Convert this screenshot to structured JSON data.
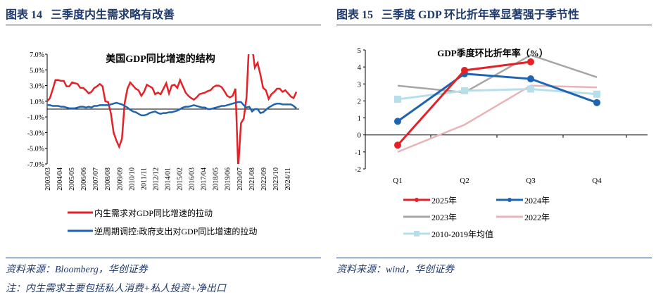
{
  "left": {
    "title": "图表 14   三季度内生需求略有改善",
    "source": "资料来源：Bloomberg，华创证券",
    "note": "注：内生需求主要包括私人消费+私人投资+净出口"
  },
  "right": {
    "title": "图表 15   三季度 GDP 环比折年率显著强于季节性",
    "source": "资料来源：wind，华创证券"
  },
  "chart_data": [
    {
      "type": "line",
      "title": "美国GDP同比增速的结构",
      "ylim": [
        -7,
        7
      ],
      "yticks": [
        "7.0%",
        "5.0%",
        "3.0%",
        "1.0%",
        "-1.0%",
        "-3.0%",
        "-5.0%",
        "-7.0%"
      ],
      "ytick_values": [
        7,
        5,
        3,
        1,
        -1,
        -3,
        -5,
        -7
      ],
      "xticks": [
        "2003/03",
        "2004/04",
        "2005/05",
        "2006/06",
        "2007/07",
        "2008/08",
        "2009/09",
        "2010/10",
        "2011/11",
        "2012/12",
        "2014/01",
        "2015/02",
        "2016/03",
        "2017/04",
        "2018/05",
        "2019/06",
        "2020/07",
        "2021/08",
        "2022/09",
        "2023/10",
        "2024/11"
      ],
      "x_range": [
        "2003/03",
        "2025/12"
      ],
      "x": [
        "2003/03",
        "2003/06",
        "2003/09",
        "2003/12",
        "2004/03",
        "2004/06",
        "2004/09",
        "2004/12",
        "2005/03",
        "2005/06",
        "2005/09",
        "2005/12",
        "2006/03",
        "2006/06",
        "2006/09",
        "2006/12",
        "2007/03",
        "2007/06",
        "2007/09",
        "2007/12",
        "2008/03",
        "2008/06",
        "2008/09",
        "2008/12",
        "2009/03",
        "2009/06",
        "2009/09",
        "2009/12",
        "2010/03",
        "2010/06",
        "2010/09",
        "2010/12",
        "2011/03",
        "2011/06",
        "2011/09",
        "2011/12",
        "2012/03",
        "2012/06",
        "2012/09",
        "2012/12",
        "2013/03",
        "2013/06",
        "2013/09",
        "2013/12",
        "2014/03",
        "2014/06",
        "2014/09",
        "2014/12",
        "2015/03",
        "2015/06",
        "2015/09",
        "2015/12",
        "2016/03",
        "2016/06",
        "2016/09",
        "2016/12",
        "2017/03",
        "2017/06",
        "2017/09",
        "2017/12",
        "2018/03",
        "2018/06",
        "2018/09",
        "2018/12",
        "2019/03",
        "2019/06",
        "2019/09",
        "2019/12",
        "2020/03",
        "2020/06",
        "2020/09",
        "2020/12",
        "2021/03",
        "2021/06",
        "2021/09",
        "2021/12",
        "2022/03",
        "2022/06",
        "2022/09",
        "2022/12",
        "2023/03",
        "2023/06",
        "2023/09",
        "2023/12",
        "2024/03",
        "2024/06",
        "2024/09",
        "2024/12",
        "2025/03",
        "2025/06",
        "2025/09"
      ],
      "series": [
        {
          "name": "内生需求对GDP同比增速的拉动",
          "color": "#e32228",
          "values": [
            1.0,
            1.4,
            2.5,
            3.7,
            3.7,
            3.6,
            3.6,
            2.9,
            2.9,
            3.4,
            3.3,
            3.2,
            2.7,
            2.7,
            2.4,
            2.0,
            2.2,
            2.7,
            2.9,
            3.2,
            2.9,
            1.0,
            0.9,
            -0.5,
            -3.0,
            -4.0,
            -4.8,
            -3.8,
            0.8,
            2.6,
            3.4,
            3.0,
            2.6,
            2.4,
            1.7,
            2.2,
            3.1,
            2.9,
            2.7,
            1.9,
            2.1,
            1.9,
            2.6,
            3.3,
            2.0,
            3.0,
            3.1,
            2.7,
            3.7,
            2.9,
            2.1,
            1.7,
            1.4,
            1.2,
            1.5,
            1.9,
            2.0,
            2.1,
            2.3,
            2.4,
            2.8,
            3.0,
            3.0,
            2.8,
            2.3,
            1.7,
            1.5,
            1.7,
            2.6,
            -7.5,
            -1.8,
            -1.2,
            1.5,
            9.0,
            8.0,
            5.3,
            5.9,
            4.4,
            2.7,
            2.4,
            1.3,
            1.9,
            2.2,
            2.6,
            2.6,
            2.2,
            2.4,
            2.0,
            1.6,
            1.4,
            2.2
          ]
        },
        {
          "name": "逆周期调控:政府支出对GDP同比增速的拉动",
          "color": "#1f64b0",
          "values": [
            0.5,
            0.5,
            0.4,
            0.4,
            0.4,
            0.3,
            0.3,
            0.2,
            0.1,
            0.1,
            0.1,
            0.2,
            0.3,
            0.3,
            0.2,
            0.3,
            0.2,
            0.4,
            0.4,
            0.5,
            0.5,
            0.5,
            0.5,
            0.6,
            0.7,
            0.8,
            0.7,
            0.6,
            0.4,
            0.2,
            -0.1,
            -0.3,
            -0.4,
            -0.6,
            -0.8,
            -0.8,
            -0.7,
            -0.5,
            -0.4,
            -0.3,
            -0.5,
            -0.6,
            -0.5,
            -0.5,
            -0.4,
            -0.4,
            -0.3,
            -0.2,
            0.0,
            0.2,
            0.3,
            0.3,
            0.4,
            0.5,
            0.4,
            0.3,
            0.2,
            0.2,
            0.0,
            0.0,
            0.1,
            0.2,
            0.3,
            0.4,
            0.4,
            0.5,
            0.6,
            0.7,
            0.8,
            0.9,
            0.9,
            0.5,
            0.2,
            0.3,
            -0.3,
            0.0,
            0.0,
            -0.5,
            -0.4,
            -0.1,
            0.2,
            0.4,
            0.6,
            0.7,
            0.7,
            0.6,
            0.6,
            0.6,
            0.6,
            0.4,
            0.1
          ]
        }
      ],
      "legend": "bottom"
    },
    {
      "type": "line",
      "title": "GDP季度环比折年率（%）",
      "ylim": [
        -2,
        5
      ],
      "yticks": [
        "5",
        "4",
        "3",
        "2",
        "1",
        "0",
        "-1",
        "-2"
      ],
      "ytick_values": [
        5,
        4,
        3,
        2,
        1,
        0,
        -1,
        -2
      ],
      "categories": [
        "Q1",
        "Q2",
        "Q3",
        "Q4"
      ],
      "series": [
        {
          "name": "2025年",
          "color": "#e32228",
          "values": [
            -0.6,
            3.8,
            4.3,
            null
          ],
          "markers": "circle"
        },
        {
          "name": "2024年",
          "color": "#1f64b0",
          "values": [
            0.8,
            3.6,
            3.3,
            1.9
          ],
          "markers": "circle"
        },
        {
          "name": "2023年",
          "color": "#a6a6a6",
          "values": [
            2.9,
            2.5,
            4.7,
            3.4
          ]
        },
        {
          "name": "2022年",
          "color": "#e8b4b8",
          "values": [
            -1.0,
            0.6,
            2.9,
            2.8
          ]
        },
        {
          "name": "2010-2019年均值",
          "color": "#b7dfea",
          "values": [
            2.1,
            2.6,
            2.7,
            2.4
          ],
          "markers": "square"
        }
      ],
      "legend": "bottom"
    }
  ]
}
